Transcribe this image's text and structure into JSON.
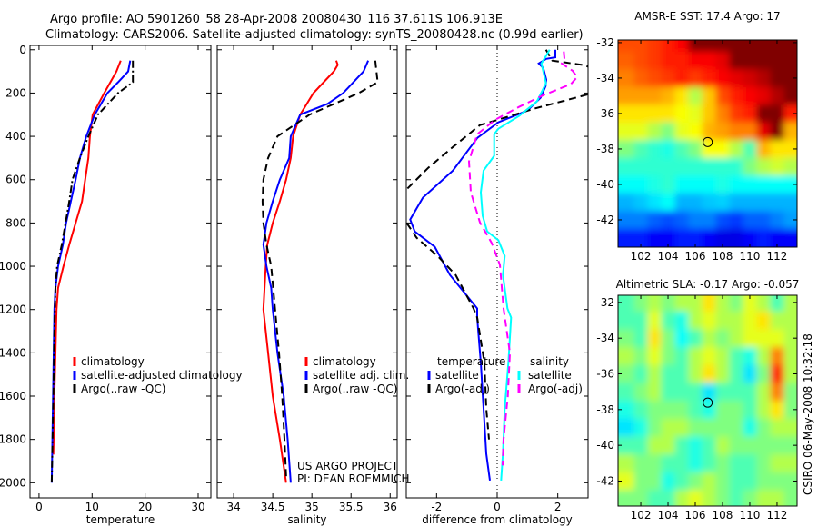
{
  "title_line1": "Argo profile: AO 5901260_58 28-Apr-2008 20080430_116 37.611S 106.913E",
  "title_line2": "Climatology: CARS2006. Satellite-adjusted climatology: synTS_20080428.nc (0.99d earlier)",
  "credit_line1": "US ARGO PROJECT",
  "credit_line2": "PI: DEAN ROEMMICH",
  "timestamp": "CSIRO 06-May-2008 10:32:18",
  "colors": {
    "climatology": "#ff0000",
    "satellite": "#0000ff",
    "argo": "#000000",
    "salinity_satellite": "#00ffff",
    "salinity_argo": "#ff00ff"
  },
  "chart_data": [
    {
      "type": "line",
      "id": "temperature",
      "xlabel": "temperature",
      "ylabel": "",
      "xlim": [
        -1.7,
        32.4
      ],
      "ylim": [
        -20,
        2070
      ],
      "xticks": [
        0,
        10,
        20,
        30
      ],
      "yticks": [
        0,
        200,
        400,
        600,
        800,
        1000,
        1200,
        1400,
        1600,
        1800,
        2000
      ],
      "show_ylabels": true,
      "legend": {
        "position": "bottom-left",
        "entries": [
          "climatology",
          "satellite-adjusted climatology",
          "Argo(..raw -QC)"
        ]
      },
      "series": [
        {
          "name": "climatology",
          "color": "#ff0000",
          "style": "solid",
          "depth": [
            50,
            100,
            200,
            300,
            400,
            500,
            600,
            700,
            800,
            900,
            1000,
            1100,
            1200,
            1400,
            1600,
            1870
          ],
          "values": [
            15.4,
            14.6,
            12.3,
            10.1,
            9.6,
            9.3,
            8.7,
            8.1,
            6.9,
            5.7,
            4.6,
            3.6,
            3.3,
            3.1,
            2.9,
            2.7
          ]
        },
        {
          "name": "satellite-adjusted climatology",
          "color": "#0000ff",
          "style": "solid",
          "depth": [
            50,
            100,
            150,
            200,
            300,
            400,
            500,
            600,
            700,
            800,
            900,
            1000,
            1100,
            1200,
            1500,
            2000
          ],
          "values": [
            17.2,
            16.8,
            14.9,
            12.9,
            10.5,
            8.9,
            7.7,
            6.9,
            6.0,
            5.1,
            4.5,
            3.6,
            3.1,
            2.9,
            2.7,
            2.4
          ]
        },
        {
          "name": "Argo(..raw -QC)",
          "color": "#000000",
          "style": "dashdot",
          "depth": [
            50,
            150,
            200,
            300,
            400,
            500,
            600,
            700,
            800,
            900,
            1000,
            1100,
            1300,
            1600,
            2000
          ],
          "values": [
            17.7,
            17.7,
            14.9,
            11.1,
            9.3,
            7.7,
            6.3,
            5.7,
            5.0,
            4.3,
            3.4,
            3.1,
            2.9,
            2.7,
            2.4
          ]
        }
      ]
    },
    {
      "type": "line",
      "id": "salinity",
      "xlabel": "salinity",
      "ylabel": "",
      "xlim": [
        33.79,
        36.09
      ],
      "ylim": [
        -20,
        2070
      ],
      "xticks": [
        34,
        34.5,
        35,
        35.5,
        36
      ],
      "yticks": [
        0,
        200,
        400,
        600,
        800,
        1000,
        1200,
        1400,
        1600,
        1800,
        2000
      ],
      "show_ylabels": false,
      "legend": {
        "position": "bottom-right",
        "entries": [
          "climatology",
          "satellite adj. clim.",
          "Argo(..raw -QC)"
        ]
      },
      "series": [
        {
          "name": "climatology",
          "color": "#ff0000",
          "style": "solid",
          "depth": [
            50,
            70,
            100,
            200,
            300,
            400,
            500,
            600,
            700,
            800,
            900,
            1000,
            1200,
            1400,
            1600,
            1800,
            2000
          ],
          "values": [
            35.31,
            35.33,
            35.28,
            35.02,
            34.85,
            34.76,
            34.73,
            34.67,
            34.59,
            34.5,
            34.43,
            34.41,
            34.38,
            34.44,
            34.5,
            34.59,
            34.67
          ]
        },
        {
          "name": "satellite adj. clim.",
          "color": "#0000ff",
          "style": "solid",
          "depth": [
            50,
            100,
            200,
            250,
            300,
            400,
            500,
            600,
            700,
            800,
            900,
            1000,
            1100,
            1200,
            1400,
            1600,
            1800,
            2000
          ],
          "values": [
            35.72,
            35.66,
            35.4,
            35.2,
            34.85,
            34.73,
            34.71,
            34.59,
            34.5,
            34.42,
            34.38,
            34.42,
            34.48,
            34.5,
            34.56,
            34.64,
            34.69,
            34.73
          ]
        },
        {
          "name": "Argo(..raw -QC)",
          "color": "#000000",
          "style": "dashed",
          "depth": [
            50,
            150,
            200,
            300,
            400,
            500,
            600,
            700,
            800,
            900,
            1000,
            1200,
            1400,
            1600,
            1800,
            1970
          ],
          "values": [
            35.81,
            35.84,
            35.6,
            34.97,
            34.56,
            34.44,
            34.38,
            34.37,
            34.38,
            34.42,
            34.48,
            34.53,
            34.58,
            34.62,
            34.65,
            34.67
          ]
        }
      ]
    },
    {
      "type": "line",
      "id": "difference",
      "xlabel": "difference from climatology",
      "ylabel": "",
      "xlim": [
        -3,
        3
      ],
      "ylim": [
        -20,
        2070
      ],
      "xticks": [
        -2,
        0,
        2
      ],
      "yticks": [
        0,
        200,
        400,
        600,
        800,
        1000,
        1200,
        1400,
        1600,
        1800,
        2000
      ],
      "show_ylabels": false,
      "zero_line": true,
      "legend": {
        "position": "bottom",
        "groups": [
          {
            "title": "temperature",
            "entries": [
              "satellite",
              "Argo(-adj)"
            ]
          },
          {
            "title": "salinity",
            "entries": [
              "satellite",
              "Argo(-adj)"
            ]
          }
        ]
      },
      "series": [
        {
          "name": "temperature satellite",
          "color": "#0000ff",
          "style": "solid",
          "depth": [
            0,
            35,
            42,
            63,
            84,
            138,
            168,
            222,
            281,
            335,
            407,
            558,
            683,
            784,
            839,
            910,
            1040,
            1195,
            1237,
            1447,
            1656,
            1866,
            1990
          ],
          "values": [
            1.92,
            1.92,
            1.62,
            1.37,
            1.52,
            1.62,
            1.6,
            1.43,
            1.0,
            0.04,
            -0.65,
            -1.46,
            -2.45,
            -2.87,
            -2.72,
            -2.06,
            -1.56,
            -0.66,
            -0.66,
            -0.54,
            -0.45,
            -0.36,
            -0.24
          ]
        },
        {
          "name": "temperature Argo(-adj)",
          "color": "#000000",
          "style": "dashed",
          "depth": [
            0,
            50,
            71,
            100,
            190,
            210,
            272,
            323,
            348,
            449,
            545,
            641,
            720,
            797,
            868,
            952,
            1040,
            1195,
            1237,
            1447,
            1656,
            1800
          ],
          "values": [
            1.61,
            1.82,
            2.87,
            3.4,
            3.4,
            2.9,
            1.22,
            0.04,
            -0.57,
            -1.46,
            -2.27,
            -2.96,
            -3.3,
            -3.0,
            -2.66,
            -1.97,
            -1.37,
            -0.78,
            -0.66,
            -0.42,
            -0.36,
            -0.27
          ]
        },
        {
          "name": "salinity satellite",
          "color": "#00ffff",
          "style": "solid",
          "depth": [
            0,
            29,
            63,
            155,
            239,
            306,
            365,
            390,
            490,
            558,
            658,
            767,
            839,
            880,
            952,
            1040,
            1195,
            1237,
            1447,
            1656,
            1866,
            1990
          ],
          "values": [
            1.73,
            1.61,
            1.46,
            1.61,
            1.31,
            0.72,
            0.04,
            -0.1,
            -0.1,
            -0.45,
            -0.54,
            -0.48,
            -0.33,
            0.04,
            0.25,
            0.19,
            0.34,
            0.46,
            0.37,
            0.25,
            0.19,
            0.13
          ]
        },
        {
          "name": "salinity Argo(-adj)",
          "color": "#ff00ff",
          "style": "dashed",
          "depth": [
            8,
            42,
            63,
            97,
            126,
            159,
            210,
            264,
            323,
            390,
            516,
            658,
            797,
            893,
            994,
            1195,
            1400,
            1600,
            1800,
            1920
          ],
          "values": [
            2.2,
            2.22,
            2.13,
            2.49,
            2.64,
            2.43,
            1.52,
            0.72,
            -0.06,
            -0.66,
            -0.93,
            -0.87,
            -0.57,
            -0.18,
            0.09,
            0.21,
            0.42,
            0.35,
            0.21,
            0.18
          ]
        }
      ]
    },
    {
      "type": "heatmap",
      "id": "sst",
      "title": "AMSR-E SST: 17.4 Argo: 17",
      "xlim": [
        100.33,
        113.47
      ],
      "ylim": [
        -43.54,
        -31.85
      ],
      "xticks": [
        102,
        104,
        106,
        108,
        110,
        112
      ],
      "yticks": [
        -32,
        -34,
        -36,
        -38,
        -40,
        -42
      ],
      "lon": [
        101,
        102,
        103,
        104,
        105,
        106,
        107,
        108,
        109,
        110,
        111,
        112,
        113
      ],
      "lat": [
        -32,
        -33,
        -34,
        -35,
        -36,
        -37,
        -38,
        -39,
        -40,
        -41,
        -42,
        -43
      ],
      "marker": {
        "lon": 106.913,
        "lat": -37.611
      },
      "values_normalized": [
        [
          0.8,
          0.8,
          0.82,
          0.85,
          0.88,
          1,
          1,
          1,
          1,
          1,
          1,
          1,
          1
        ],
        [
          0.78,
          0.8,
          0.82,
          0.85,
          0.85,
          0.88,
          0.88,
          0.9,
          1,
          1,
          1,
          1,
          1
        ],
        [
          0.75,
          0.78,
          0.8,
          0.82,
          0.85,
          0.82,
          0.85,
          0.88,
          0.9,
          0.92,
          0.95,
          1,
          1
        ],
        [
          0.72,
          0.72,
          0.72,
          0.7,
          0.65,
          0.55,
          0.68,
          0.8,
          0.85,
          0.88,
          0.9,
          0.95,
          1
        ],
        [
          0.65,
          0.65,
          0.65,
          0.65,
          0.62,
          0.6,
          0.68,
          0.75,
          0.82,
          0.85,
          1,
          1,
          0.85
        ],
        [
          0.6,
          0.6,
          0.55,
          0.5,
          0.6,
          0.62,
          0.7,
          0.72,
          0.75,
          0.75,
          0.9,
          1,
          0.7
        ],
        [
          0.5,
          0.45,
          0.42,
          0.4,
          0.45,
          0.5,
          0.62,
          0.62,
          0.55,
          0.45,
          0.7,
          0.65,
          0.65
        ],
        [
          0.42,
          0.42,
          0.42,
          0.42,
          0.42,
          0.42,
          0.42,
          0.42,
          0.42,
          0.5,
          0.55,
          0.58,
          0.55
        ],
        [
          0.38,
          0.38,
          0.4,
          0.42,
          0.38,
          0.38,
          0.38,
          0.4,
          0.38,
          0.38,
          0.38,
          0.38,
          0.38
        ],
        [
          0.3,
          0.32,
          0.35,
          0.38,
          0.3,
          0.3,
          0.32,
          0.33,
          0.3,
          0.3,
          0.3,
          0.3,
          0.3
        ],
        [
          0.25,
          0.25,
          0.22,
          0.2,
          0.22,
          0.25,
          0.25,
          0.2,
          0.18,
          0.22,
          0.22,
          0.25,
          0.28
        ],
        [
          0.15,
          0.15,
          0.12,
          0.12,
          0.15,
          0.15,
          0.12,
          0.1,
          0.1,
          0.12,
          0.15,
          0.12,
          0.12
        ]
      ]
    },
    {
      "type": "heatmap",
      "id": "sla",
      "title": "Altimetric SLA: -0.17 Argo: -0.057",
      "xlim": [
        100.33,
        113.47
      ],
      "ylim": [
        -43.4,
        -31.6
      ],
      "xticks": [
        102,
        104,
        106,
        108,
        110,
        112
      ],
      "yticks": [
        -32,
        -34,
        -36,
        -38,
        -40,
        -42
      ],
      "lon": [
        101,
        102,
        103,
        104,
        105,
        106,
        107,
        108,
        109,
        110,
        111,
        112,
        113
      ],
      "lat": [
        -32,
        -33,
        -34,
        -35,
        -36,
        -37,
        -38,
        -39,
        -40,
        -41,
        -42,
        -43
      ],
      "marker": {
        "lon": 106.913,
        "lat": -37.611
      },
      "values_normalized": [
        [
          0.45,
          0.5,
          0.55,
          0.5,
          0.55,
          0.55,
          0.65,
          0.55,
          0.5,
          0.6,
          0.55,
          0.45,
          0.55
        ],
        [
          0.45,
          0.45,
          0.6,
          0.45,
          0.4,
          0.55,
          0.6,
          0.55,
          0.55,
          0.6,
          0.65,
          0.55,
          0.55
        ],
        [
          0.5,
          0.45,
          0.65,
          0.5,
          0.38,
          0.45,
          0.55,
          0.5,
          0.55,
          0.6,
          0.6,
          0.6,
          0.55
        ],
        [
          0.55,
          0.5,
          0.6,
          0.5,
          0.45,
          0.55,
          0.6,
          0.55,
          0.45,
          0.4,
          0.55,
          0.75,
          0.55
        ],
        [
          0.5,
          0.45,
          0.55,
          0.45,
          0.45,
          0.55,
          0.65,
          0.55,
          0.45,
          0.35,
          0.5,
          0.85,
          0.55
        ],
        [
          0.45,
          0.5,
          0.55,
          0.45,
          0.45,
          0.45,
          0.35,
          0.45,
          0.45,
          0.45,
          0.55,
          0.75,
          0.5
        ],
        [
          0.4,
          0.45,
          0.5,
          0.5,
          0.5,
          0.45,
          0.4,
          0.5,
          0.5,
          0.45,
          0.55,
          0.65,
          0.5
        ],
        [
          0.35,
          0.4,
          0.5,
          0.55,
          0.55,
          0.5,
          0.5,
          0.5,
          0.5,
          0.4,
          0.5,
          0.55,
          0.55
        ],
        [
          0.45,
          0.45,
          0.55,
          0.55,
          0.45,
          0.4,
          0.45,
          0.55,
          0.5,
          0.5,
          0.5,
          0.5,
          0.5
        ],
        [
          0.55,
          0.5,
          0.5,
          0.45,
          0.45,
          0.4,
          0.45,
          0.5,
          0.45,
          0.45,
          0.5,
          0.55,
          0.55
        ],
        [
          0.6,
          0.5,
          0.5,
          0.4,
          0.45,
          0.5,
          0.55,
          0.5,
          0.45,
          0.45,
          0.5,
          0.5,
          0.5
        ],
        [
          0.5,
          0.5,
          0.45,
          0.45,
          0.55,
          0.6,
          0.55,
          0.5,
          0.45,
          0.5,
          0.55,
          0.55,
          0.5
        ]
      ]
    }
  ]
}
